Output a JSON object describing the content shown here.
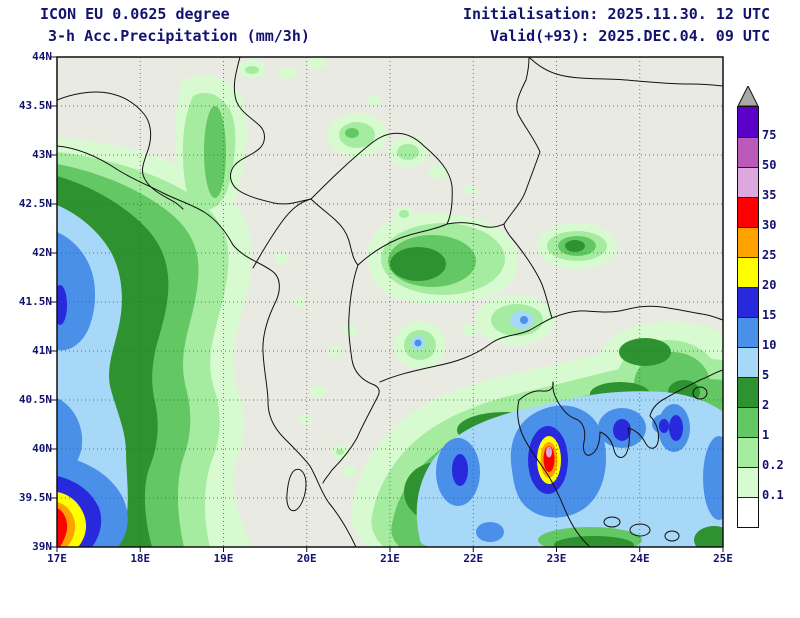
{
  "header": {
    "model_line": "ICON EU 0.0625 degree",
    "product_line": "3-h Acc.Precipitation (mm/3h)",
    "init_line": "Initialisation: 2025.11.30. 12 UTC",
    "valid_line": "Valid(+93): 2025.DEC.04. 09 UTC"
  },
  "map": {
    "lat_ticks": [
      "44N",
      "43.5N",
      "43N",
      "42.5N",
      "42N",
      "41.5N",
      "41N",
      "40.5N",
      "40N",
      "39.5N",
      "39N"
    ],
    "lon_ticks": [
      "17E",
      "18E",
      "19E",
      "20E",
      "21E",
      "22E",
      "23E",
      "24E",
      "25E"
    ]
  },
  "legend": {
    "unit": "mm/3h",
    "arrow_color": "#a8a8a8",
    "cells": [
      {
        "color": "#5a00c8",
        "label": "75"
      },
      {
        "color": "#bc5abc",
        "label": "50"
      },
      {
        "color": "#dda8dd",
        "label": "35"
      },
      {
        "color": "#ff0000",
        "label": "30"
      },
      {
        "color": "#ffa200",
        "label": "25"
      },
      {
        "color": "#ffff00",
        "label": "20"
      },
      {
        "color": "#2828dc",
        "label": "15"
      },
      {
        "color": "#4a90e8",
        "label": "10"
      },
      {
        "color": "#a8d8f8",
        "label": "5"
      },
      {
        "color": "#2f9230",
        "label": "2"
      },
      {
        "color": "#63c763",
        "label": "1"
      },
      {
        "color": "#a5eca0",
        "label": "0.2"
      },
      {
        "color": "#d8fad0",
        "label": "0.1"
      },
      {
        "color": "#ffffff",
        "label": ""
      }
    ]
  },
  "colors": {
    "background_land": "#e9ebe2",
    "border_line": "#111111",
    "header_text": "#13136e"
  }
}
